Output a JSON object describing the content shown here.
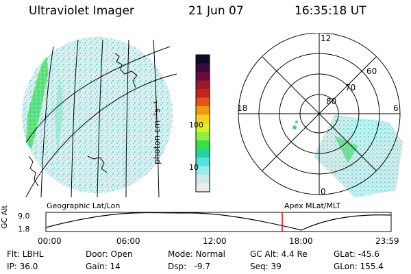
{
  "header": {
    "instrument": "Ultraviolet Imager",
    "date": "21 Jun 07",
    "time": "16:35:18 UT"
  },
  "colorbar": {
    "units_label": "photon cm⁻²s⁻¹",
    "tick_labels": [
      "100",
      "10"
    ],
    "colors": [
      "#0b0b2a",
      "#3a0b3d",
      "#6b0b3a",
      "#9a1a2a",
      "#c3251a",
      "#e1541a",
      "#f09a12",
      "#f7d21a",
      "#d9f12a",
      "#8ef040",
      "#3bdd4a",
      "#23d3a5",
      "#55e0e0",
      "#9cebeb",
      "#cde9e9",
      "#e8eeee"
    ]
  },
  "polar_plot": {
    "hour_labels": [
      "12",
      "18",
      "6",
      "0"
    ],
    "lat_labels": [
      "60",
      "70",
      "80"
    ]
  },
  "panel_labels": {
    "left": "Geographic Lat/Lon",
    "right": "Apex MLat/MLT"
  },
  "altitude_plot": {
    "y_axis_label": "GC Alt",
    "y_ticks": [
      "9.0",
      "1.8"
    ],
    "x_ticks": [
      "00:00",
      "06:00",
      "12:00",
      "18:00",
      "23:59"
    ],
    "marker_time": "16:35",
    "marker_color": "#e00000"
  },
  "info": {
    "filter": "Flt: LBHL",
    "door": "Door: Open",
    "mode": "Mode: Normal",
    "gc_alt": "GC Alt: 4.4 Re",
    "glat": "GLat: -45.6",
    "ip": "IP: 36.0",
    "gain": "Gain: 14",
    "dsp": "Dsp:   -9.7",
    "seq": "Seq: 39",
    "glon": "GLon: 155.4"
  }
}
